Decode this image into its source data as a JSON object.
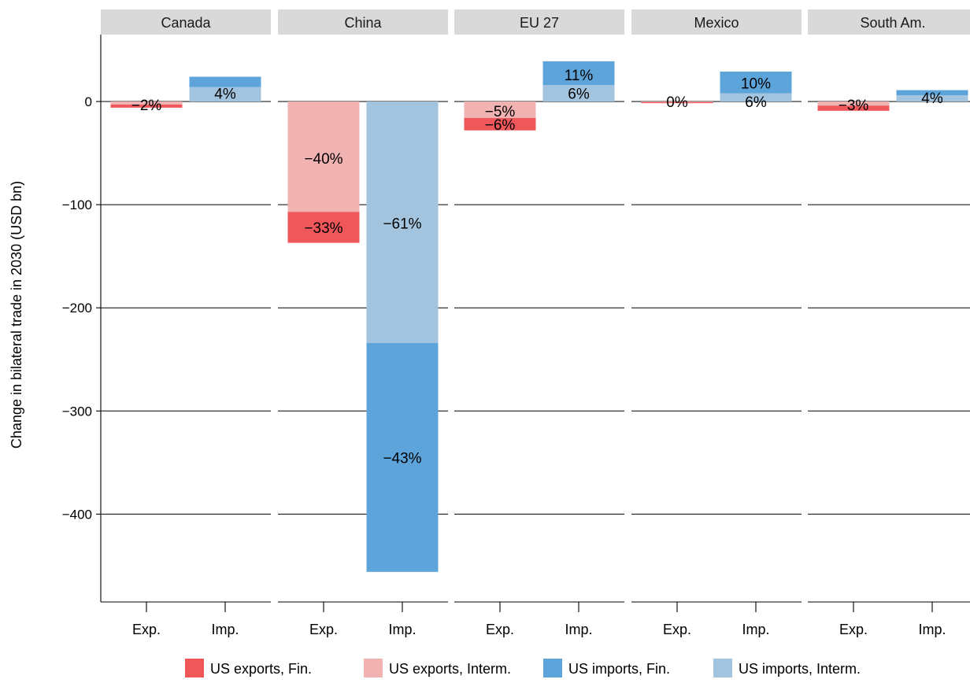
{
  "chart_data": {
    "type": "bar",
    "ylabel": "Change in bilateral trade in 2030 (USD bn)",
    "ylim": [
      -455,
      60
    ],
    "yticks": [
      0,
      -100,
      -200,
      -300,
      -400
    ],
    "ytick_labels": [
      "0",
      "−100",
      "−200",
      "−300",
      "−400"
    ],
    "categories": [
      "Exp.",
      "Imp."
    ],
    "legend_position": "bottom",
    "series": [
      {
        "name": "US exports, Fin.",
        "color": "#f0575a"
      },
      {
        "name": "US exports, Interm.",
        "color": "#f1b2b2"
      },
      {
        "name": "US imports, Fin.",
        "color": "#5da4da"
      },
      {
        "name": "US imports, Interm.",
        "color": "#a3c4de"
      }
    ],
    "panels": [
      {
        "name": "Canada",
        "bars": [
          {
            "label": "Exp.",
            "segments": [
              {
                "series": "US exports, Interm.",
                "from": 0,
                "to": -3,
                "pct": "−2%",
                "label_y": -3
              },
              {
                "series": "US exports, Fin.",
                "from": -3,
                "to": -6,
                "pct": "",
                "label_y": null
              }
            ]
          },
          {
            "label": "Imp.",
            "segments": [
              {
                "series": "US imports, Interm.",
                "from": 0,
                "to": 14,
                "pct": "4%",
                "label_y": 8
              },
              {
                "series": "US imports, Fin.",
                "from": 14,
                "to": 24,
                "pct": "",
                "label_y": null
              }
            ]
          }
        ]
      },
      {
        "name": "China",
        "bars": [
          {
            "label": "Exp.",
            "segments": [
              {
                "series": "US exports, Interm.",
                "from": 0,
                "to": -107,
                "pct": "−40%",
                "label_y": -55
              },
              {
                "series": "US exports, Fin.",
                "from": -107,
                "to": -137,
                "pct": "−33%",
                "label_y": -122
              }
            ]
          },
          {
            "label": "Imp.",
            "segments": [
              {
                "series": "US imports, Interm.",
                "from": 0,
                "to": -234,
                "pct": "−61%",
                "label_y": -118
              },
              {
                "series": "US imports, Fin.",
                "from": -234,
                "to": -456,
                "pct": "−43%",
                "label_y": -345
              }
            ]
          }
        ]
      },
      {
        "name": "EU 27",
        "bars": [
          {
            "label": "Exp.",
            "segments": [
              {
                "series": "US exports, Interm.",
                "from": 0,
                "to": -16,
                "pct": "−5%",
                "label_y": -9
              },
              {
                "series": "US exports, Fin.",
                "from": -16,
                "to": -28,
                "pct": "−6%",
                "label_y": -22
              }
            ]
          },
          {
            "label": "Imp.",
            "segments": [
              {
                "series": "US imports, Interm.",
                "from": 0,
                "to": 16,
                "pct": "6%",
                "label_y": 8
              },
              {
                "series": "US imports, Fin.",
                "from": 16,
                "to": 39,
                "pct": "11%",
                "label_y": 26
              }
            ]
          }
        ]
      },
      {
        "name": "Mexico",
        "bars": [
          {
            "label": "Exp.",
            "segments": [
              {
                "series": "US exports, Interm.",
                "from": 0,
                "to": -0.7,
                "pct": "0%",
                "label_y": 0
              },
              {
                "series": "US exports, Fin.",
                "from": -0.7,
                "to": -1.5,
                "pct": "",
                "label_y": null
              }
            ]
          },
          {
            "label": "Imp.",
            "segments": [
              {
                "series": "US imports, Interm.",
                "from": 0,
                "to": 8,
                "pct": "6%",
                "label_y": 0
              },
              {
                "series": "US imports, Fin.",
                "from": 8,
                "to": 29,
                "pct": "10%",
                "label_y": 18
              }
            ]
          }
        ]
      },
      {
        "name": "South Am.",
        "bars": [
          {
            "label": "Exp.",
            "segments": [
              {
                "series": "US exports, Interm.",
                "from": 0,
                "to": -4,
                "pct": "−3%",
                "label_y": -3
              },
              {
                "series": "US exports, Fin.",
                "from": -4,
                "to": -9,
                "pct": "",
                "label_y": null
              }
            ]
          },
          {
            "label": "Imp.",
            "segments": [
              {
                "series": "US imports, Interm.",
                "from": 0,
                "to": 6,
                "pct": "4%",
                "label_y": 4
              },
              {
                "series": "US imports, Fin.",
                "from": 6,
                "to": 11,
                "pct": "",
                "label_y": null
              }
            ]
          }
        ]
      }
    ]
  }
}
